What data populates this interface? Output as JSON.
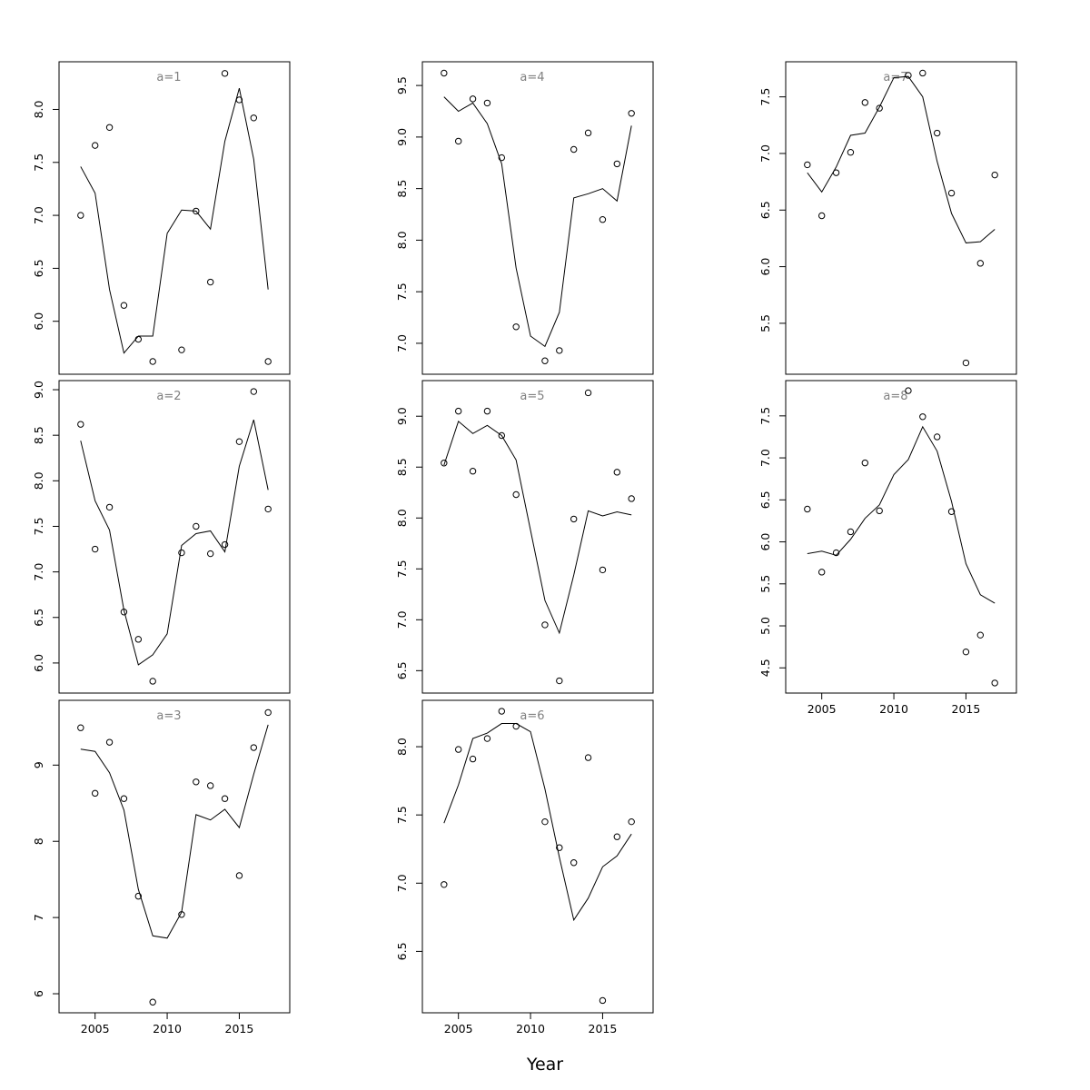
{
  "figure": {
    "xlabel": "Year"
  },
  "chart_data": [
    {
      "type": "scatter",
      "title": "a=1",
      "x": [
        2004,
        2005,
        2006,
        2007,
        2008,
        2009,
        2010,
        2011,
        2012,
        2013,
        2014,
        2015,
        2016,
        2017
      ],
      "points": [
        7.0,
        7.66,
        7.83,
        6.15,
        5.83,
        5.62,
        null,
        5.73,
        7.04,
        6.37,
        8.34,
        8.09,
        7.92,
        5.62
      ],
      "fit": [
        7.46,
        7.21,
        6.3,
        5.7,
        5.86,
        5.86,
        6.83,
        7.05,
        7.04,
        6.87,
        7.7,
        8.2,
        7.53,
        6.3
      ],
      "ylim": [
        5.5,
        8.45
      ],
      "yticks": [
        "6.0",
        "6.5",
        "7.0",
        "7.5",
        "8.0"
      ],
      "xticks": [],
      "xlim": [
        2002.5,
        2018.5
      ]
    },
    {
      "type": "scatter",
      "title": "a=2",
      "x": [
        2004,
        2005,
        2006,
        2007,
        2008,
        2009,
        2010,
        2011,
        2012,
        2013,
        2014,
        2015,
        2016,
        2017
      ],
      "points": [
        8.62,
        7.25,
        7.71,
        6.56,
        6.26,
        5.8,
        null,
        7.21,
        7.5,
        7.2,
        7.3,
        8.43,
        8.98,
        7.69
      ],
      "fit": [
        8.44,
        7.78,
        7.46,
        6.58,
        5.98,
        6.09,
        6.32,
        7.29,
        7.42,
        7.45,
        7.22,
        8.16,
        8.67,
        7.9
      ],
      "ylim": [
        5.67,
        9.1
      ],
      "yticks": [
        "6.0",
        "6.5",
        "7.0",
        "7.5",
        "8.0",
        "8.5",
        "9.0"
      ],
      "xticks": [],
      "xlim": [
        2002.5,
        2018.5
      ]
    },
    {
      "type": "scatter",
      "title": "a=3",
      "x": [
        2004,
        2005,
        2006,
        2007,
        2008,
        2009,
        2010,
        2011,
        2012,
        2013,
        2014,
        2015,
        2016,
        2017
      ],
      "points": [
        9.49,
        8.63,
        9.3,
        8.56,
        7.28,
        5.89,
        null,
        7.04,
        8.78,
        8.73,
        8.56,
        7.55,
        9.23,
        9.69
      ],
      "fit": [
        9.21,
        9.18,
        8.9,
        8.41,
        7.37,
        6.76,
        6.73,
        7.07,
        8.35,
        8.28,
        8.42,
        8.18,
        8.88,
        9.53
      ],
      "ylim": [
        5.75,
        9.85
      ],
      "yticks": [
        "6",
        "7",
        "8",
        "9"
      ],
      "xticks": [
        "2005",
        "2010",
        "2015"
      ],
      "xlim": [
        2002.5,
        2018.5
      ]
    },
    {
      "type": "scatter",
      "title": "a=4",
      "x": [
        2004,
        2005,
        2006,
        2007,
        2008,
        2009,
        2010,
        2011,
        2012,
        2013,
        2014,
        2015,
        2016,
        2017
      ],
      "points": [
        9.62,
        8.96,
        9.37,
        9.33,
        8.8,
        7.16,
        null,
        6.83,
        6.93,
        8.88,
        9.04,
        8.2,
        8.74,
        9.23
      ],
      "fit": [
        9.39,
        9.25,
        9.33,
        9.13,
        8.74,
        7.73,
        7.07,
        6.97,
        7.3,
        8.41,
        8.45,
        8.5,
        8.38,
        9.11
      ],
      "ylim": [
        6.7,
        9.73
      ],
      "yticks": [
        "7.0",
        "7.5",
        "8.0",
        "8.5",
        "9.0",
        "9.5"
      ],
      "xticks": [],
      "xlim": [
        2002.5,
        2018.5
      ]
    },
    {
      "type": "scatter",
      "title": "a=5",
      "x": [
        2004,
        2005,
        2006,
        2007,
        2008,
        2009,
        2010,
        2011,
        2012,
        2013,
        2014,
        2015,
        2016,
        2017
      ],
      "points": [
        8.54,
        9.05,
        8.46,
        9.05,
        8.81,
        8.23,
        null,
        6.95,
        6.4,
        7.99,
        9.23,
        7.49,
        8.45,
        8.19
      ],
      "fit": [
        8.52,
        8.95,
        8.83,
        8.91,
        8.81,
        8.57,
        7.88,
        7.19,
        6.87,
        7.44,
        8.07,
        8.02,
        8.06,
        8.03
      ],
      "ylim": [
        6.28,
        9.35
      ],
      "yticks": [
        "6.5",
        "7.0",
        "7.5",
        "8.0",
        "8.5",
        "9.0"
      ],
      "xticks": [],
      "xlim": [
        2002.5,
        2018.5
      ]
    },
    {
      "type": "scatter",
      "title": "a=6",
      "x": [
        2004,
        2005,
        2006,
        2007,
        2008,
        2009,
        2010,
        2011,
        2012,
        2013,
        2014,
        2015,
        2016,
        2017
      ],
      "points": [
        6.99,
        7.98,
        7.91,
        8.06,
        8.26,
        8.15,
        null,
        7.45,
        7.26,
        7.15,
        7.92,
        6.14,
        7.34,
        7.45
      ],
      "fit": [
        7.44,
        7.72,
        8.06,
        8.1,
        8.17,
        8.17,
        8.11,
        7.69,
        7.19,
        6.73,
        6.89,
        7.12,
        7.2,
        7.36
      ],
      "ylim": [
        6.05,
        8.34
      ],
      "yticks": [
        "6.5",
        "7.0",
        "7.5",
        "8.0"
      ],
      "xticks": [
        "2005",
        "2010",
        "2015"
      ],
      "xlim": [
        2002.5,
        2018.5
      ]
    },
    {
      "type": "scatter",
      "title": "a=7",
      "x": [
        2004,
        2005,
        2006,
        2007,
        2008,
        2009,
        2010,
        2011,
        2012,
        2013,
        2014,
        2015,
        2016,
        2017
      ],
      "points": [
        6.9,
        6.45,
        6.83,
        7.01,
        7.45,
        7.4,
        null,
        7.69,
        7.71,
        7.18,
        6.65,
        5.15,
        6.03,
        6.81
      ],
      "fit": [
        6.83,
        6.66,
        6.88,
        7.16,
        7.18,
        7.41,
        7.67,
        7.68,
        7.5,
        6.93,
        6.47,
        6.21,
        6.22,
        6.33
      ],
      "ylim": [
        5.05,
        7.81
      ],
      "yticks": [
        "5.5",
        "6.0",
        "6.5",
        "7.0",
        "7.5"
      ],
      "xticks": [],
      "xlim": [
        2002.5,
        2018.5
      ]
    },
    {
      "type": "scatter",
      "title": "a=8",
      "x": [
        2004,
        2005,
        2006,
        2007,
        2008,
        2009,
        2010,
        2011,
        2012,
        2013,
        2014,
        2015,
        2016,
        2017
      ],
      "points": [
        6.39,
        5.64,
        5.87,
        6.12,
        6.94,
        6.37,
        null,
        7.8,
        7.49,
        7.25,
        6.36,
        4.69,
        4.89,
        4.32
      ],
      "fit": [
        5.86,
        5.89,
        5.84,
        6.03,
        6.28,
        6.44,
        6.8,
        6.98,
        7.37,
        7.08,
        6.48,
        5.74,
        5.37,
        5.27
      ],
      "ylim": [
        4.2,
        7.92
      ],
      "yticks": [
        "4.5",
        "5.0",
        "5.5",
        "6.0",
        "6.5",
        "7.0",
        "7.5"
      ],
      "xticks": [
        "2005",
        "2010",
        "2015"
      ],
      "xlim": [
        2002.5,
        2018.5
      ]
    }
  ]
}
